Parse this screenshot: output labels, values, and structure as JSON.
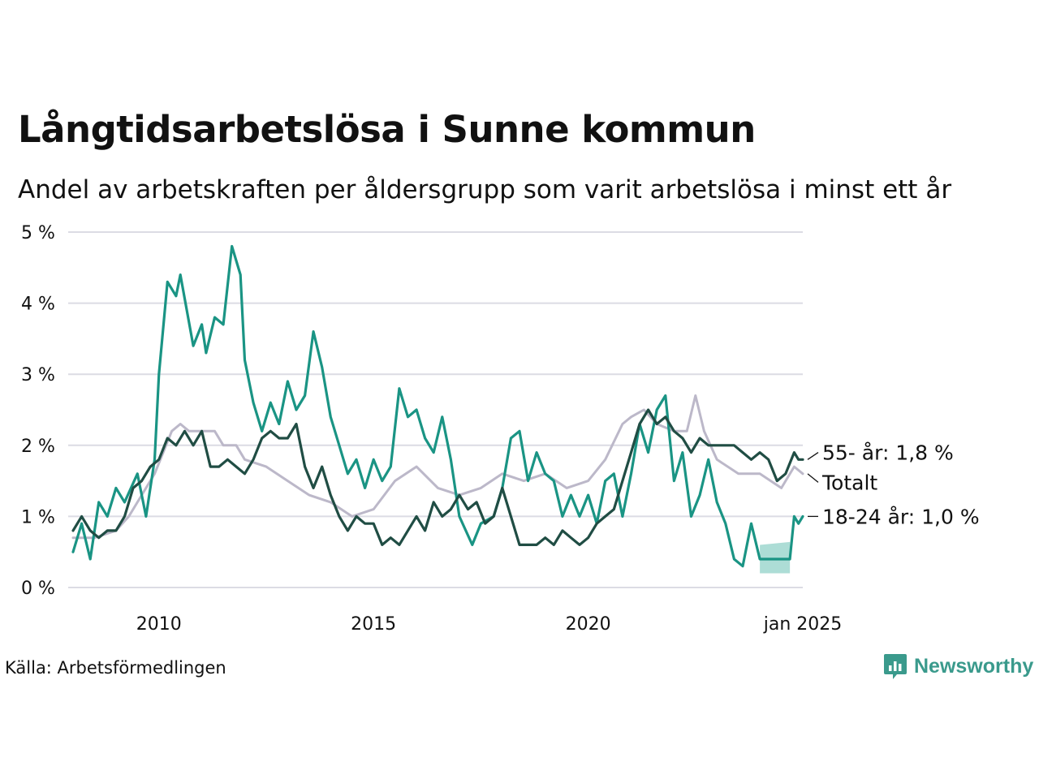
{
  "title": "Långtidsarbetslösa i Sunne kommun",
  "subtitle": "Andel av arbetskraften per åldersgrupp som varit arbetslösa i minst ett år",
  "source": "Källa: Arbetsförmedlingen",
  "brand": "Newsworthy",
  "colors": {
    "young": "#1a9484",
    "old": "#204d44",
    "total": "#bcb8c9",
    "band": "#a4d9d1",
    "grid": "#dcdce4"
  },
  "chart_data": {
    "type": "line",
    "title": "Långtidsarbetslösa i Sunne kommun",
    "subtitle": "Andel av arbetskraften per åldersgrupp som varit arbetslösa i minst ett år",
    "xlabel": "",
    "ylabel": "",
    "xlim": [
      2008.0,
      2025.0
    ],
    "ylim": [
      0,
      5
    ],
    "yticks": [
      0,
      1,
      2,
      3,
      4,
      5
    ],
    "ytick_labels": [
      "0 %",
      "1 %",
      "2 %",
      "3 %",
      "4 %",
      "5 %"
    ],
    "xticks": [
      2010,
      2015,
      2020,
      2025
    ],
    "xtick_labels": [
      "2010",
      "2015",
      "2020",
      "jan 2025"
    ],
    "grid": true,
    "series": [
      {
        "name": "Totalt",
        "label": "Totalt",
        "color_key": "total",
        "points": [
          [
            2008.0,
            0.7
          ],
          [
            2008.5,
            0.7
          ],
          [
            2009.0,
            0.8
          ],
          [
            2009.3,
            1.0
          ],
          [
            2009.6,
            1.3
          ],
          [
            2009.9,
            1.6
          ],
          [
            2010.1,
            1.9
          ],
          [
            2010.3,
            2.2
          ],
          [
            2010.5,
            2.3
          ],
          [
            2010.7,
            2.2
          ],
          [
            2011.0,
            2.2
          ],
          [
            2011.3,
            2.2
          ],
          [
            2011.5,
            2.0
          ],
          [
            2011.8,
            2.0
          ],
          [
            2012.0,
            1.8
          ],
          [
            2012.5,
            1.7
          ],
          [
            2013.0,
            1.5
          ],
          [
            2013.5,
            1.3
          ],
          [
            2014.0,
            1.2
          ],
          [
            2014.5,
            1.0
          ],
          [
            2015.0,
            1.1
          ],
          [
            2015.5,
            1.5
          ],
          [
            2016.0,
            1.7
          ],
          [
            2016.5,
            1.4
          ],
          [
            2017.0,
            1.3
          ],
          [
            2017.5,
            1.4
          ],
          [
            2018.0,
            1.6
          ],
          [
            2018.5,
            1.5
          ],
          [
            2019.0,
            1.6
          ],
          [
            2019.5,
            1.4
          ],
          [
            2020.0,
            1.5
          ],
          [
            2020.4,
            1.8
          ],
          [
            2020.8,
            2.3
          ],
          [
            2021.0,
            2.4
          ],
          [
            2021.3,
            2.5
          ],
          [
            2021.6,
            2.3
          ],
          [
            2022.0,
            2.2
          ],
          [
            2022.3,
            2.2
          ],
          [
            2022.5,
            2.7
          ],
          [
            2022.7,
            2.2
          ],
          [
            2023.0,
            1.8
          ],
          [
            2023.5,
            1.6
          ],
          [
            2024.0,
            1.6
          ],
          [
            2024.5,
            1.4
          ],
          [
            2024.8,
            1.7
          ],
          [
            2025.0,
            1.6
          ]
        ]
      },
      {
        "name": "18-24 år",
        "label": "18-24 år: 1,0 %",
        "color_key": "young",
        "points": [
          [
            2008.0,
            0.5
          ],
          [
            2008.2,
            0.9
          ],
          [
            2008.4,
            0.4
          ],
          [
            2008.6,
            1.2
          ],
          [
            2008.8,
            1.0
          ],
          [
            2009.0,
            1.4
          ],
          [
            2009.2,
            1.2
          ],
          [
            2009.5,
            1.6
          ],
          [
            2009.7,
            1.0
          ],
          [
            2009.9,
            1.8
          ],
          [
            2010.0,
            3.0
          ],
          [
            2010.2,
            4.3
          ],
          [
            2010.4,
            4.1
          ],
          [
            2010.5,
            4.4
          ],
          [
            2010.8,
            3.4
          ],
          [
            2011.0,
            3.7
          ],
          [
            2011.1,
            3.3
          ],
          [
            2011.3,
            3.8
          ],
          [
            2011.5,
            3.7
          ],
          [
            2011.7,
            4.8
          ],
          [
            2011.9,
            4.4
          ],
          [
            2012.0,
            3.2
          ],
          [
            2012.2,
            2.6
          ],
          [
            2012.4,
            2.2
          ],
          [
            2012.6,
            2.6
          ],
          [
            2012.8,
            2.3
          ],
          [
            2013.0,
            2.9
          ],
          [
            2013.2,
            2.5
          ],
          [
            2013.4,
            2.7
          ],
          [
            2013.6,
            3.6
          ],
          [
            2013.8,
            3.1
          ],
          [
            2014.0,
            2.4
          ],
          [
            2014.2,
            2.0
          ],
          [
            2014.4,
            1.6
          ],
          [
            2014.6,
            1.8
          ],
          [
            2014.8,
            1.4
          ],
          [
            2015.0,
            1.8
          ],
          [
            2015.2,
            1.5
          ],
          [
            2015.4,
            1.7
          ],
          [
            2015.6,
            2.8
          ],
          [
            2015.8,
            2.4
          ],
          [
            2016.0,
            2.5
          ],
          [
            2016.2,
            2.1
          ],
          [
            2016.4,
            1.9
          ],
          [
            2016.6,
            2.4
          ],
          [
            2016.8,
            1.8
          ],
          [
            2017.0,
            1.0
          ],
          [
            2017.3,
            0.6
          ],
          [
            2017.5,
            0.9
          ],
          [
            2017.8,
            1.0
          ],
          [
            2018.0,
            1.4
          ],
          [
            2018.2,
            2.1
          ],
          [
            2018.4,
            2.2
          ],
          [
            2018.6,
            1.5
          ],
          [
            2018.8,
            1.9
          ],
          [
            2019.0,
            1.6
          ],
          [
            2019.2,
            1.5
          ],
          [
            2019.4,
            1.0
          ],
          [
            2019.6,
            1.3
          ],
          [
            2019.8,
            1.0
          ],
          [
            2020.0,
            1.3
          ],
          [
            2020.2,
            0.9
          ],
          [
            2020.4,
            1.5
          ],
          [
            2020.6,
            1.6
          ],
          [
            2020.8,
            1.0
          ],
          [
            2021.0,
            1.6
          ],
          [
            2021.2,
            2.3
          ],
          [
            2021.4,
            1.9
          ],
          [
            2021.6,
            2.5
          ],
          [
            2021.8,
            2.7
          ],
          [
            2022.0,
            1.5
          ],
          [
            2022.2,
            1.9
          ],
          [
            2022.4,
            1.0
          ],
          [
            2022.6,
            1.3
          ],
          [
            2022.8,
            1.8
          ],
          [
            2023.0,
            1.2
          ],
          [
            2023.2,
            0.9
          ],
          [
            2023.4,
            0.4
          ],
          [
            2023.6,
            0.3
          ],
          [
            2023.8,
            0.9
          ],
          [
            2024.0,
            0.4
          ],
          [
            2024.4,
            0.4
          ],
          [
            2024.7,
            0.4
          ],
          [
            2024.8,
            1.0
          ],
          [
            2024.9,
            0.9
          ],
          [
            2025.0,
            1.0
          ]
        ]
      },
      {
        "name": "55- år",
        "label": "55- år: 1,8 %",
        "color_key": "old",
        "points": [
          [
            2008.0,
            0.8
          ],
          [
            2008.2,
            1.0
          ],
          [
            2008.4,
            0.8
          ],
          [
            2008.6,
            0.7
          ],
          [
            2008.8,
            0.8
          ],
          [
            2009.0,
            0.8
          ],
          [
            2009.2,
            1.0
          ],
          [
            2009.4,
            1.4
          ],
          [
            2009.6,
            1.5
          ],
          [
            2009.8,
            1.7
          ],
          [
            2010.0,
            1.8
          ],
          [
            2010.2,
            2.1
          ],
          [
            2010.4,
            2.0
          ],
          [
            2010.6,
            2.2
          ],
          [
            2010.8,
            2.0
          ],
          [
            2011.0,
            2.2
          ],
          [
            2011.2,
            1.7
          ],
          [
            2011.4,
            1.7
          ],
          [
            2011.6,
            1.8
          ],
          [
            2011.8,
            1.7
          ],
          [
            2012.0,
            1.6
          ],
          [
            2012.2,
            1.8
          ],
          [
            2012.4,
            2.1
          ],
          [
            2012.6,
            2.2
          ],
          [
            2012.8,
            2.1
          ],
          [
            2013.0,
            2.1
          ],
          [
            2013.2,
            2.3
          ],
          [
            2013.4,
            1.7
          ],
          [
            2013.6,
            1.4
          ],
          [
            2013.8,
            1.7
          ],
          [
            2014.0,
            1.3
          ],
          [
            2014.2,
            1.0
          ],
          [
            2014.4,
            0.8
          ],
          [
            2014.6,
            1.0
          ],
          [
            2014.8,
            0.9
          ],
          [
            2015.0,
            0.9
          ],
          [
            2015.2,
            0.6
          ],
          [
            2015.4,
            0.7
          ],
          [
            2015.6,
            0.6
          ],
          [
            2015.8,
            0.8
          ],
          [
            2016.0,
            1.0
          ],
          [
            2016.2,
            0.8
          ],
          [
            2016.4,
            1.2
          ],
          [
            2016.6,
            1.0
          ],
          [
            2016.8,
            1.1
          ],
          [
            2017.0,
            1.3
          ],
          [
            2017.2,
            1.1
          ],
          [
            2017.4,
            1.2
          ],
          [
            2017.6,
            0.9
          ],
          [
            2017.8,
            1.0
          ],
          [
            2018.0,
            1.4
          ],
          [
            2018.2,
            1.0
          ],
          [
            2018.4,
            0.6
          ],
          [
            2018.6,
            0.6
          ],
          [
            2018.8,
            0.6
          ],
          [
            2019.0,
            0.7
          ],
          [
            2019.2,
            0.6
          ],
          [
            2019.4,
            0.8
          ],
          [
            2019.6,
            0.7
          ],
          [
            2019.8,
            0.6
          ],
          [
            2020.0,
            0.7
          ],
          [
            2020.2,
            0.9
          ],
          [
            2020.4,
            1.0
          ],
          [
            2020.6,
            1.1
          ],
          [
            2020.8,
            1.5
          ],
          [
            2021.0,
            1.9
          ],
          [
            2021.2,
            2.3
          ],
          [
            2021.4,
            2.5
          ],
          [
            2021.6,
            2.3
          ],
          [
            2021.8,
            2.4
          ],
          [
            2022.0,
            2.2
          ],
          [
            2022.2,
            2.1
          ],
          [
            2022.4,
            1.9
          ],
          [
            2022.6,
            2.1
          ],
          [
            2022.8,
            2.0
          ],
          [
            2023.0,
            2.0
          ],
          [
            2023.2,
            2.0
          ],
          [
            2023.4,
            2.0
          ],
          [
            2023.6,
            1.9
          ],
          [
            2023.8,
            1.8
          ],
          [
            2024.0,
            1.9
          ],
          [
            2024.2,
            1.8
          ],
          [
            2024.4,
            1.5
          ],
          [
            2024.6,
            1.6
          ],
          [
            2024.8,
            1.9
          ],
          [
            2024.9,
            1.8
          ],
          [
            2025.0,
            1.8
          ]
        ]
      }
    ],
    "uncertainty_band": {
      "series": "18-24 år",
      "x": [
        2024.0,
        2024.7
      ],
      "lower": 0.2,
      "upper": 0.6
    }
  }
}
